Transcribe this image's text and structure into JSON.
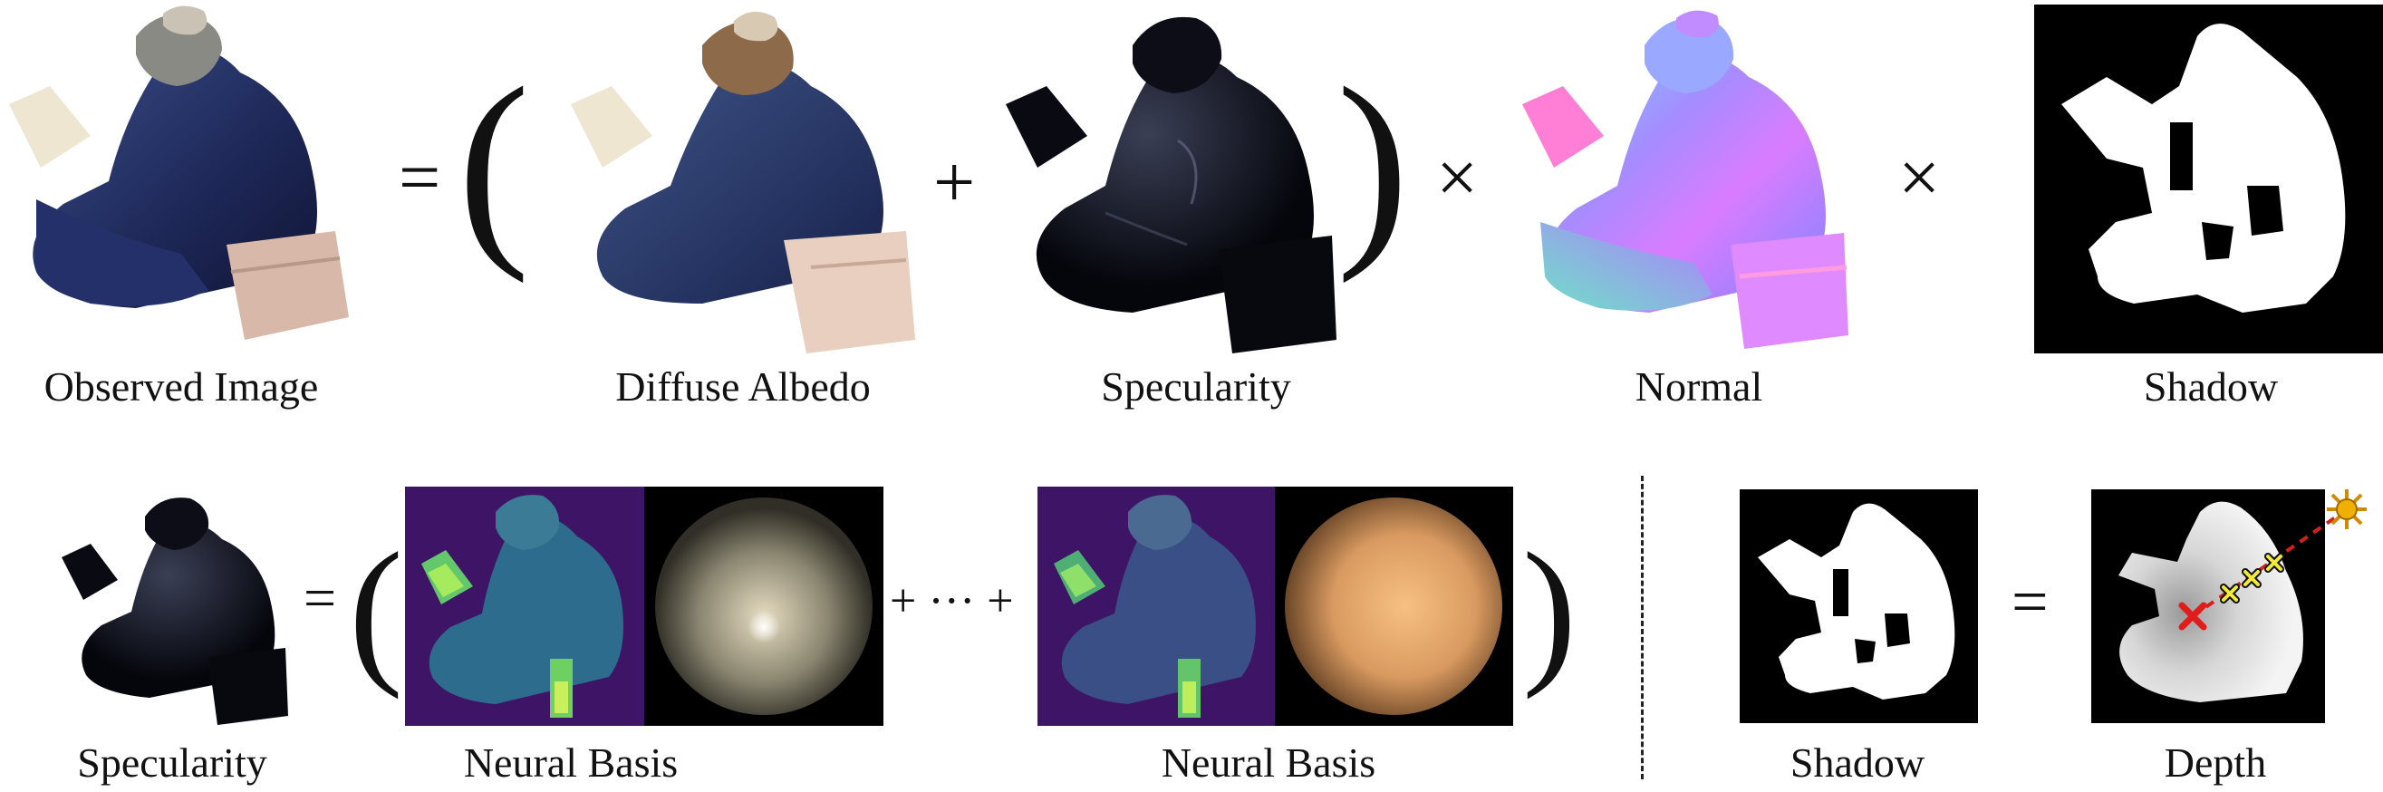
{
  "top_row": {
    "labels": {
      "observed": "Observed Image",
      "albedo": "Diffuse Albedo",
      "specularity": "Specularity",
      "normal": "Normal",
      "shadow": "Shadow"
    },
    "operators": {
      "equals": "=",
      "open_paren": "(",
      "plus": "+",
      "close_paren": ")",
      "times1": "×",
      "times2": "×"
    }
  },
  "bottom_row": {
    "labels": {
      "specularity": "Specularity",
      "neural_basis_1": "Neural Basis",
      "neural_basis_2": "Neural Basis",
      "shadow": "Shadow",
      "depth": "Depth"
    },
    "operators": {
      "equals": "=",
      "open_paren": "(",
      "plus_ellipsis": "+ ··· +",
      "close_paren": ")",
      "equals2": "="
    }
  },
  "colors": {
    "basis_bg": "#3d1466",
    "basis_fg_teal": "#2f6f8f",
    "basis_highlight": "#7fe35a",
    "sphere1": "#d9cfb4",
    "sphere2": "#f3b978",
    "shadow_ray": "#d62020",
    "sun": "#f0b000"
  }
}
